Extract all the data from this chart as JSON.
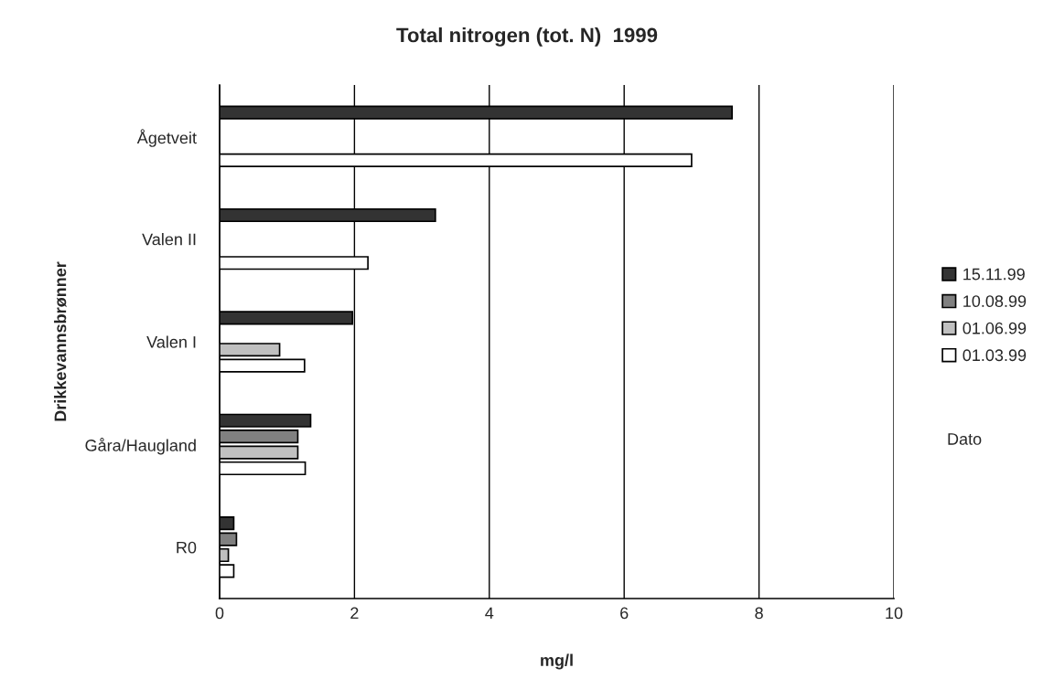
{
  "chart_data": {
    "type": "bar",
    "orientation": "horizontal",
    "title": "Total nitrogen (tot. N)  1999",
    "xlabel": "mg/l",
    "ylabel": "Drikkevannsbrønner",
    "legend_title": "Dato",
    "categories": [
      "Ågetveit",
      "Valen II",
      "Valen I",
      "Gåra/Haugland",
      "R0"
    ],
    "series": [
      {
        "name": "15.11.99",
        "color": "#333333",
        "values": [
          7.6,
          3.2,
          1.97,
          1.35,
          0.21
        ]
      },
      {
        "name": "10.08.99",
        "color": "#808080",
        "values": [
          null,
          null,
          null,
          1.16,
          0.25
        ]
      },
      {
        "name": "01.06.99",
        "color": "#c0c0c0",
        "values": [
          null,
          null,
          0.89,
          1.16,
          0.13
        ]
      },
      {
        "name": "01.03.99",
        "color": "#ffffff",
        "values": [
          7.0,
          2.2,
          1.26,
          1.27,
          0.21
        ]
      }
    ],
    "xlim": [
      0,
      10
    ],
    "xticks": [
      0,
      2,
      4,
      6,
      8,
      10
    ],
    "grid": "x",
    "legend": "right"
  }
}
